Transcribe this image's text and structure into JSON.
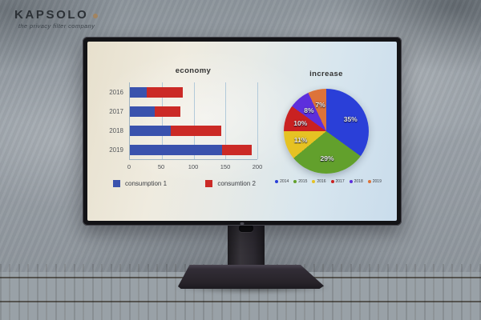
{
  "brand": {
    "name": "KAPSOLO",
    "tagline": "the privacy filter company",
    "dot_color": "#a3845f"
  },
  "chart_data": [
    {
      "type": "bar",
      "orientation": "horizontal",
      "stacked": true,
      "title": "economy",
      "categories": [
        "2016",
        "2017",
        "2018",
        "2019"
      ],
      "series": [
        {
          "name": "consumption  1",
          "color": "#3a52ad",
          "values": [
            27,
            39,
            64,
            145
          ]
        },
        {
          "name": "consumtion 2",
          "color": "#cb2a26",
          "values": [
            56,
            40,
            80,
            46
          ]
        }
      ],
      "xlim": [
        0,
        200
      ],
      "xticks": [
        0,
        50,
        100,
        150,
        200
      ],
      "grid": "vertical",
      "legend_position": "bottom"
    },
    {
      "type": "pie",
      "title": "increase",
      "labels": [
        "2014",
        "2015",
        "2016",
        "2017",
        "2018",
        "2019"
      ],
      "values": [
        35,
        29,
        11,
        10,
        8,
        7
      ],
      "slice_labels": [
        "35%",
        "29%",
        "11%",
        "10%",
        "8%",
        "7%"
      ],
      "colors": [
        "#2a3fd8",
        "#62a02c",
        "#e6c223",
        "#c92121",
        "#5d2fdc",
        "#dd7339"
      ],
      "start_angle_deg": 0,
      "direction": "clockwise",
      "legend_position": "bottom"
    }
  ]
}
